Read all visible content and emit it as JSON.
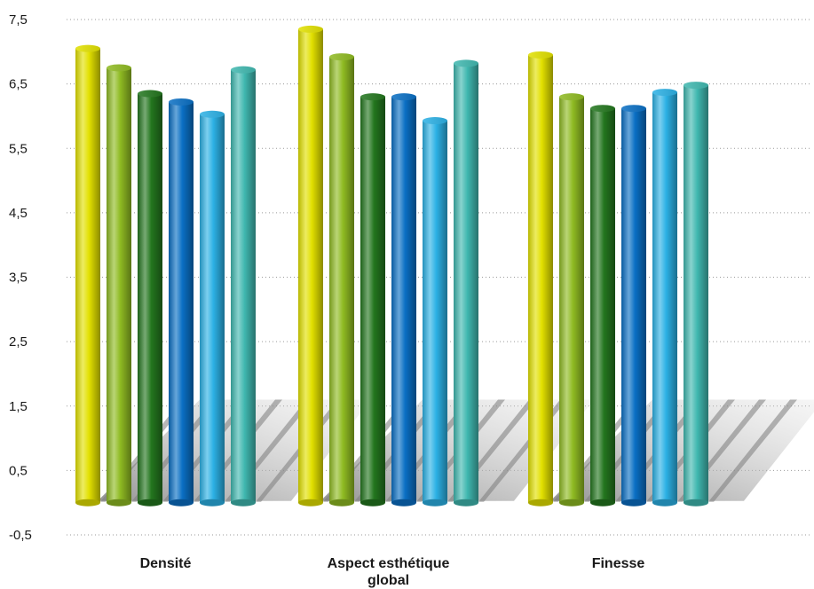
{
  "chart_data": {
    "type": "bar",
    "title": "",
    "xlabel": "",
    "ylabel": "",
    "ylim": [
      -0.5,
      7.5
    ],
    "y_ticks": [
      "7,5",
      "6,5",
      "5,5",
      "4,5",
      "3,5",
      "2,5",
      "1,5",
      "0,5",
      "-0,5"
    ],
    "grid": true,
    "legend": "none",
    "baseline": 0,
    "categories": [
      {
        "lines": [
          "Densité"
        ]
      },
      {
        "lines": [
          "Aspect esthétique",
          "global"
        ]
      },
      {
        "lines": [
          "Finesse"
        ]
      }
    ],
    "series": [
      {
        "color": "#e2e000",
        "values": [
          7.05,
          7.35,
          6.95
        ]
      },
      {
        "color": "#8fbb22",
        "values": [
          6.75,
          6.92,
          6.3
        ]
      },
      {
        "color": "#23761e",
        "values": [
          6.35,
          6.3,
          6.12
        ]
      },
      {
        "color": "#0a6fc4",
        "values": [
          6.22,
          6.3,
          6.12
        ]
      },
      {
        "color": "#2cb1e5",
        "values": [
          6.03,
          5.93,
          6.37
        ]
      },
      {
        "color": "#40b8b0",
        "values": [
          6.72,
          6.82,
          6.48
        ]
      }
    ]
  }
}
